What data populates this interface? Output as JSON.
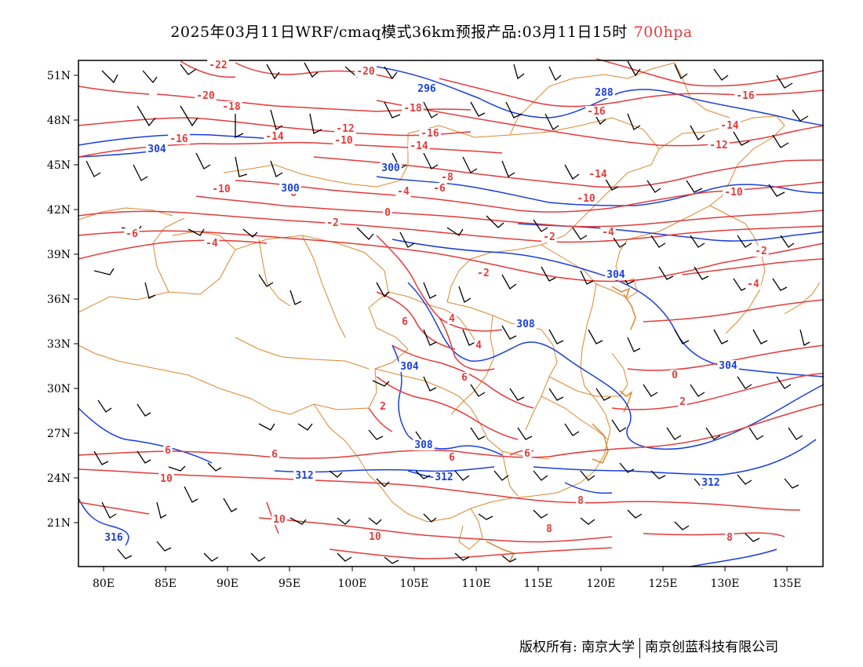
{
  "header": {
    "title": "2025年03月11日WRF/cmaq模式36km预报产品:03月11日15时",
    "level": "700hpa"
  },
  "axes": {
    "lat_labels": [
      "51N",
      "48N",
      "45N",
      "42N",
      "39N",
      "36N",
      "33N",
      "30N",
      "27N",
      "24N",
      "21N"
    ],
    "lon_labels": [
      "80E",
      "85E",
      "90E",
      "95E",
      "100E",
      "105E",
      "110E",
      "115E",
      "120E",
      "125E",
      "130E",
      "135E"
    ],
    "lon_range": [
      78,
      138
    ],
    "lat_range": [
      17.5,
      51.5
    ]
  },
  "colors": {
    "temperature": "#e33b3b",
    "height": "#1a3fdc",
    "boundary": "#d9892e",
    "wind": "#000000"
  },
  "temperature_labels": [
    "-22",
    "-20",
    "-20",
    "-18",
    "-18",
    "-16",
    "-16",
    "-16",
    "-16",
    "-14",
    "-14",
    "-14",
    "-14",
    "-12",
    "-12",
    "-10",
    "-10",
    "-10",
    "-10",
    "-8",
    "-6",
    "-6",
    "-6",
    "-4",
    "-4",
    "-4",
    "-4",
    "-2",
    "-2",
    "-2",
    "-2",
    "0",
    "0",
    "2",
    "2",
    "4",
    "4",
    "6",
    "6",
    "6",
    "6",
    "6",
    "6",
    "8",
    "8",
    "8",
    "10",
    "10",
    "10"
  ],
  "height_labels": [
    "288",
    "296",
    "300",
    "300",
    "304",
    "304",
    "304",
    "304",
    "308",
    "308",
    "312",
    "312",
    "312",
    "316"
  ],
  "footer": {
    "left": "版权所有: 南京大学",
    "right": "南京创蓝科技有限公司"
  }
}
